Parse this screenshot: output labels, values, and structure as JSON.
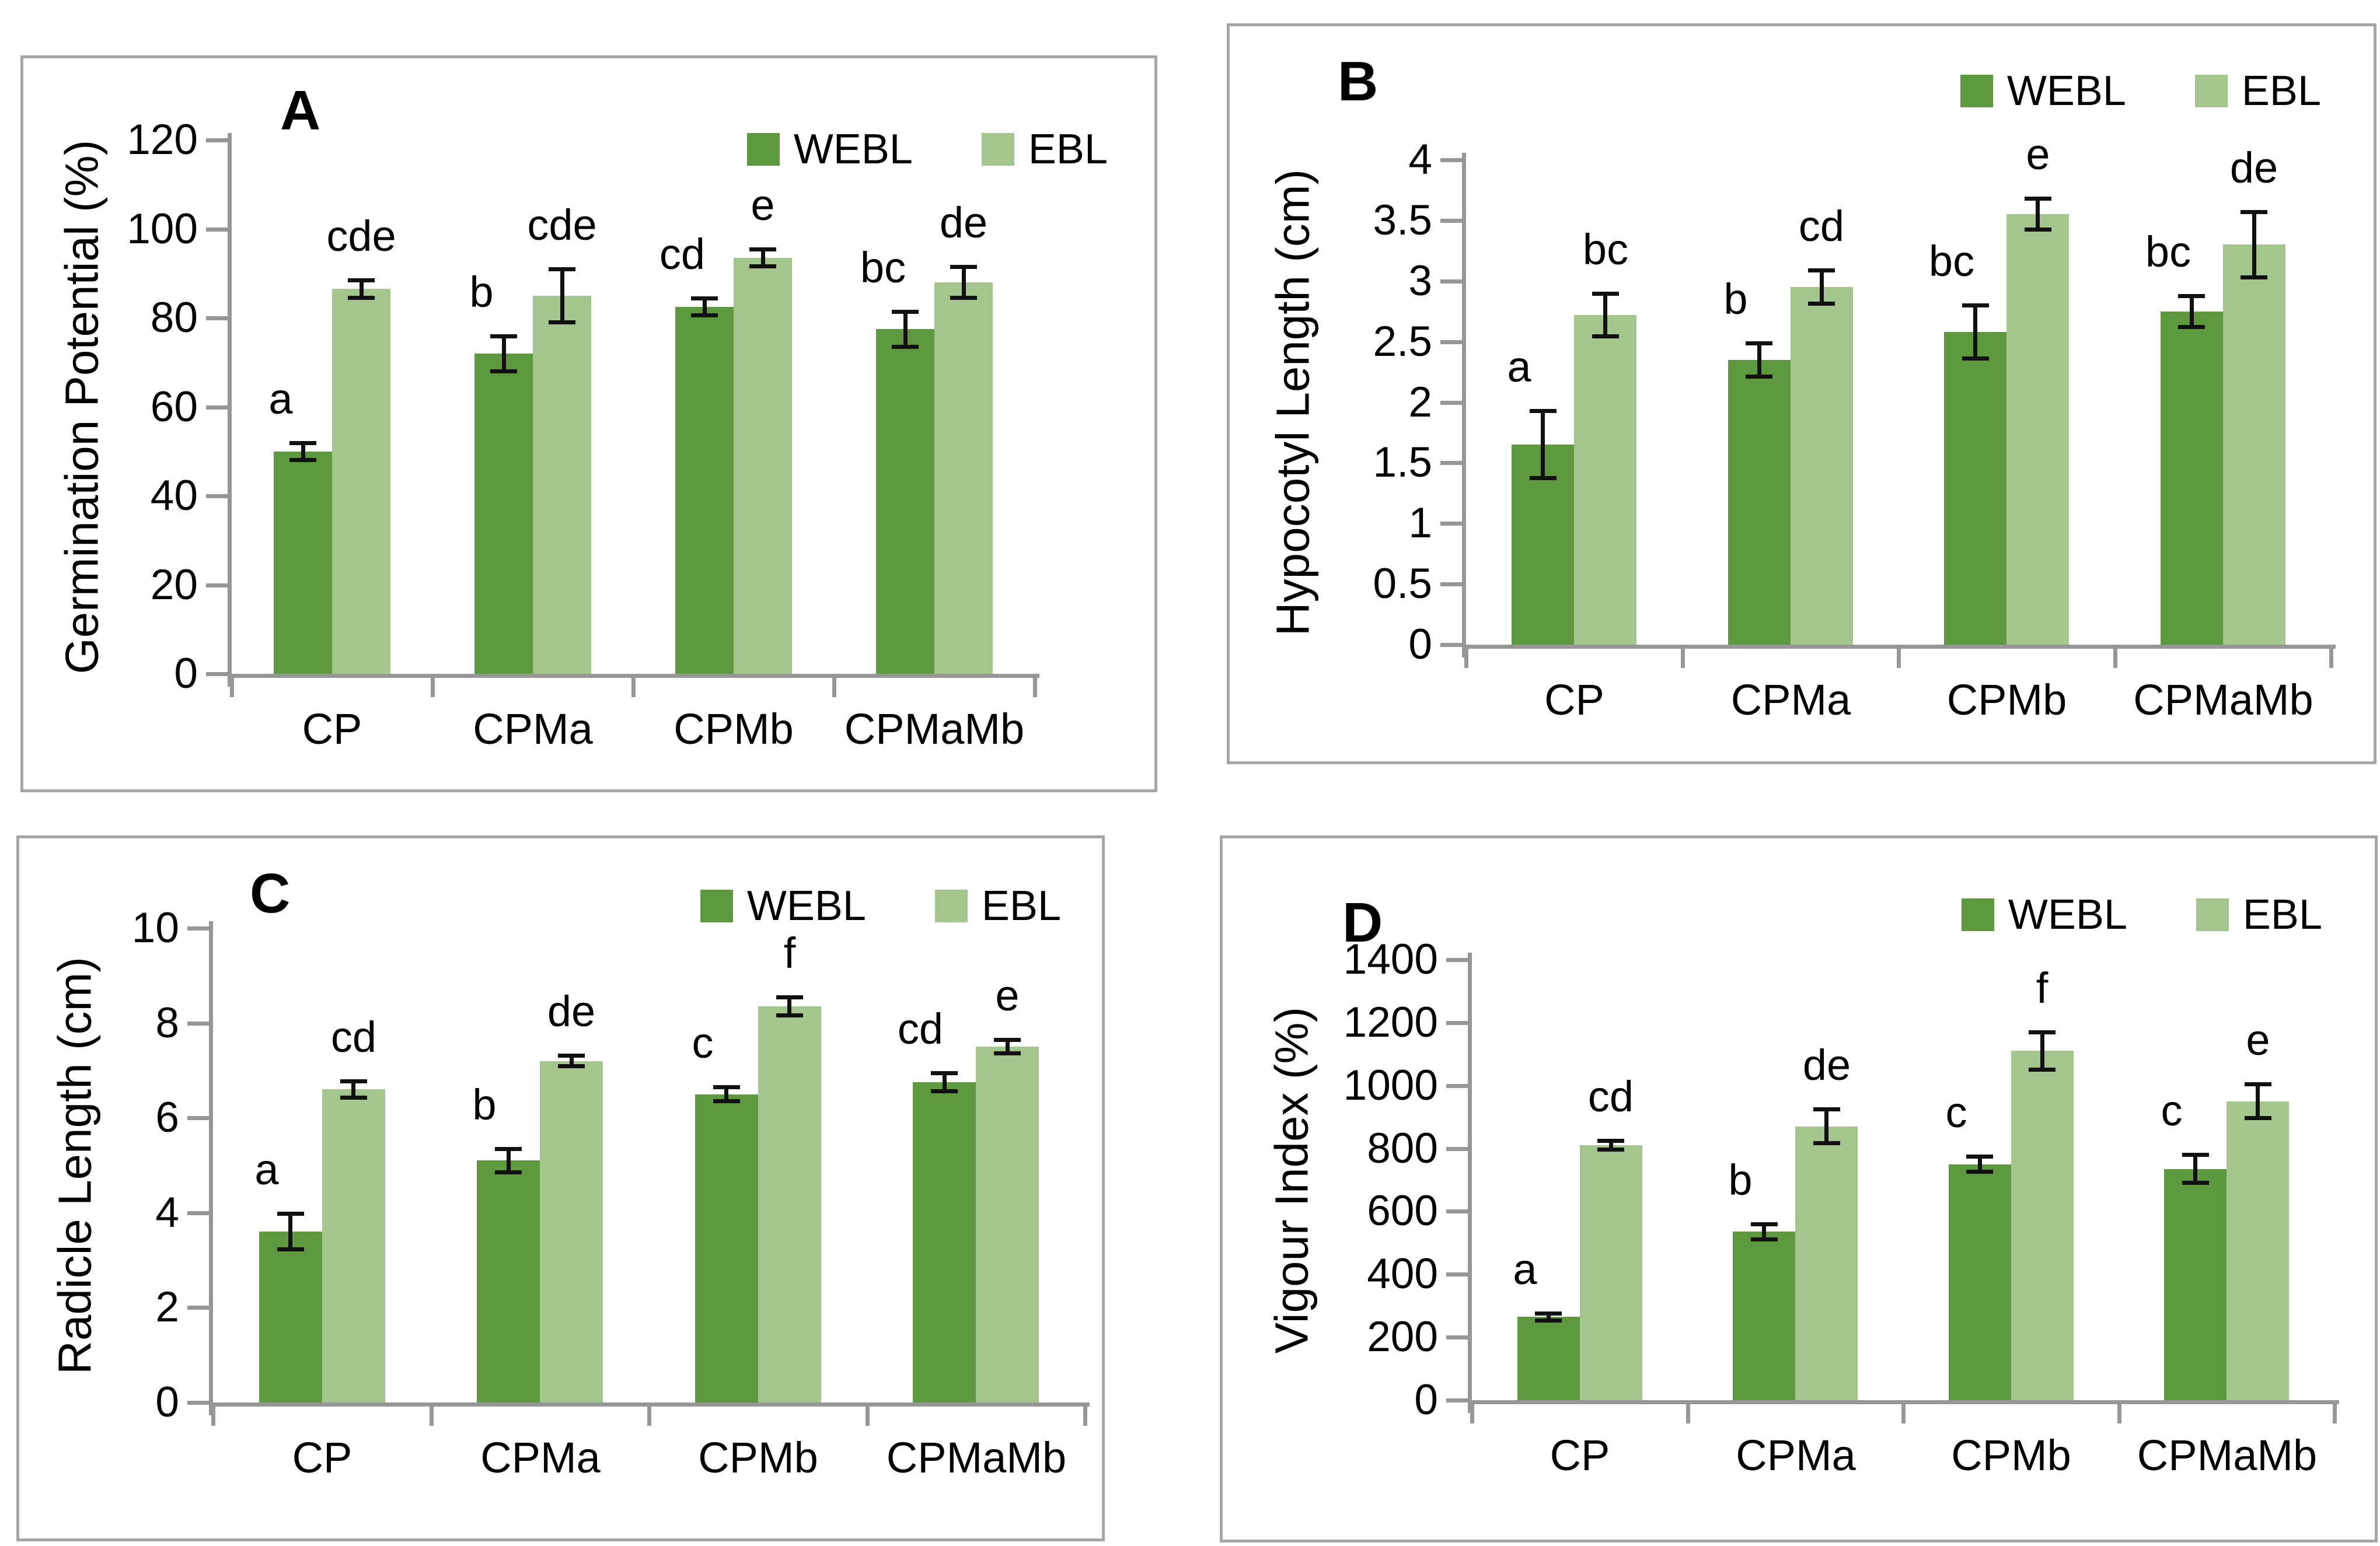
{
  "figure": {
    "series_legend": [
      "WEBL",
      "EBL"
    ],
    "colors": {
      "webl": "#5f993f",
      "ebl": "#a4c68e",
      "axis": "#969696",
      "panel_border": "#a6a6a6",
      "error_bar": "#111111"
    }
  },
  "chart_data": [
    {
      "type": "bar",
      "panel_label": "A",
      "title": "",
      "xlabel": "",
      "ylabel": "Germination Potential (%)",
      "ylim": [
        0,
        120
      ],
      "ytick_step": 20,
      "yticks": [
        "0",
        "20",
        "40",
        "60",
        "80",
        "100",
        "120"
      ],
      "categories": [
        "CP",
        "CPMa",
        "CPMb",
        "CPMaMb"
      ],
      "legend_position": "top-right",
      "grid": false,
      "series": [
        {
          "name": "WEBL",
          "color": "#5f993f",
          "values": [
            50,
            72,
            82.5,
            77.5
          ],
          "errors": [
            2,
            4,
            2,
            4
          ],
          "letters": [
            "a",
            "b",
            "cd",
            "bc"
          ]
        },
        {
          "name": "EBL",
          "color": "#a4c68e",
          "values": [
            86.5,
            85,
            93.5,
            88
          ],
          "errors": [
            2,
            6,
            2,
            3.5
          ],
          "letters": [
            "cde",
            "cde",
            "e",
            "de"
          ]
        }
      ]
    },
    {
      "type": "bar",
      "panel_label": "B",
      "title": "",
      "xlabel": "",
      "ylabel": "Hypocotyl Length (cm)",
      "ylim": [
        0,
        4
      ],
      "ytick_step": 0.5,
      "yticks": [
        "0",
        "0.5",
        "1",
        "1.5",
        "2",
        "2.5",
        "3",
        "3.5",
        "4"
      ],
      "categories": [
        "CP",
        "CPMa",
        "CPMb",
        "CPMaMb"
      ],
      "legend_position": "top-right",
      "grid": false,
      "series": [
        {
          "name": "WEBL",
          "color": "#5f993f",
          "values": [
            1.65,
            2.35,
            2.58,
            2.75
          ],
          "errors": [
            0.28,
            0.14,
            0.22,
            0.13
          ],
          "letters": [
            "a",
            "b",
            "bc",
            "bc"
          ]
        },
        {
          "name": "EBL",
          "color": "#a4c68e",
          "values": [
            2.72,
            2.95,
            3.55,
            3.3
          ],
          "errors": [
            0.18,
            0.14,
            0.13,
            0.27
          ],
          "letters": [
            "bc",
            "cd",
            "e",
            "de"
          ]
        }
      ]
    },
    {
      "type": "bar",
      "panel_label": "C",
      "title": "",
      "xlabel": "",
      "ylabel": "Radicle Length (cm)",
      "ylim": [
        0,
        10
      ],
      "ytick_step": 2,
      "yticks": [
        "0",
        "2",
        "4",
        "6",
        "8",
        "10"
      ],
      "categories": [
        "CP",
        "CPMa",
        "CPMb",
        "CPMaMb"
      ],
      "legend_position": "top-right",
      "grid": false,
      "series": [
        {
          "name": "WEBL",
          "color": "#5f993f",
          "values": [
            3.6,
            5.1,
            6.5,
            6.75
          ],
          "errors": [
            0.38,
            0.25,
            0.15,
            0.2
          ],
          "letters": [
            "a",
            "b",
            "c",
            "cd"
          ]
        },
        {
          "name": "EBL",
          "color": "#a4c68e",
          "values": [
            6.6,
            7.2,
            8.35,
            7.5
          ],
          "errors": [
            0.18,
            0.12,
            0.2,
            0.15
          ],
          "letters": [
            "cd",
            "de",
            "f",
            "e"
          ]
        }
      ]
    },
    {
      "type": "bar",
      "panel_label": "D",
      "title": "",
      "xlabel": "",
      "ylabel": "Vigour Index (%)",
      "ylim": [
        0,
        1400
      ],
      "ytick_step": 200,
      "yticks": [
        "0",
        "200",
        "400",
        "600",
        "800",
        "1000",
        "1200",
        "1400"
      ],
      "categories": [
        "CP",
        "CPMa",
        "CPMb",
        "CPMaMb"
      ],
      "legend_position": "top-right",
      "grid": false,
      "series": [
        {
          "name": "WEBL",
          "color": "#5f993f",
          "values": [
            265,
            535,
            750,
            735
          ],
          "errors": [
            12,
            25,
            25,
            45
          ],
          "letters": [
            "a",
            "b",
            "c",
            "c"
          ]
        },
        {
          "name": "EBL",
          "color": "#a4c68e",
          "values": [
            810,
            870,
            1110,
            950
          ],
          "errors": [
            15,
            55,
            60,
            55
          ],
          "letters": [
            "cd",
            "de",
            "f",
            "e"
          ]
        }
      ]
    }
  ]
}
